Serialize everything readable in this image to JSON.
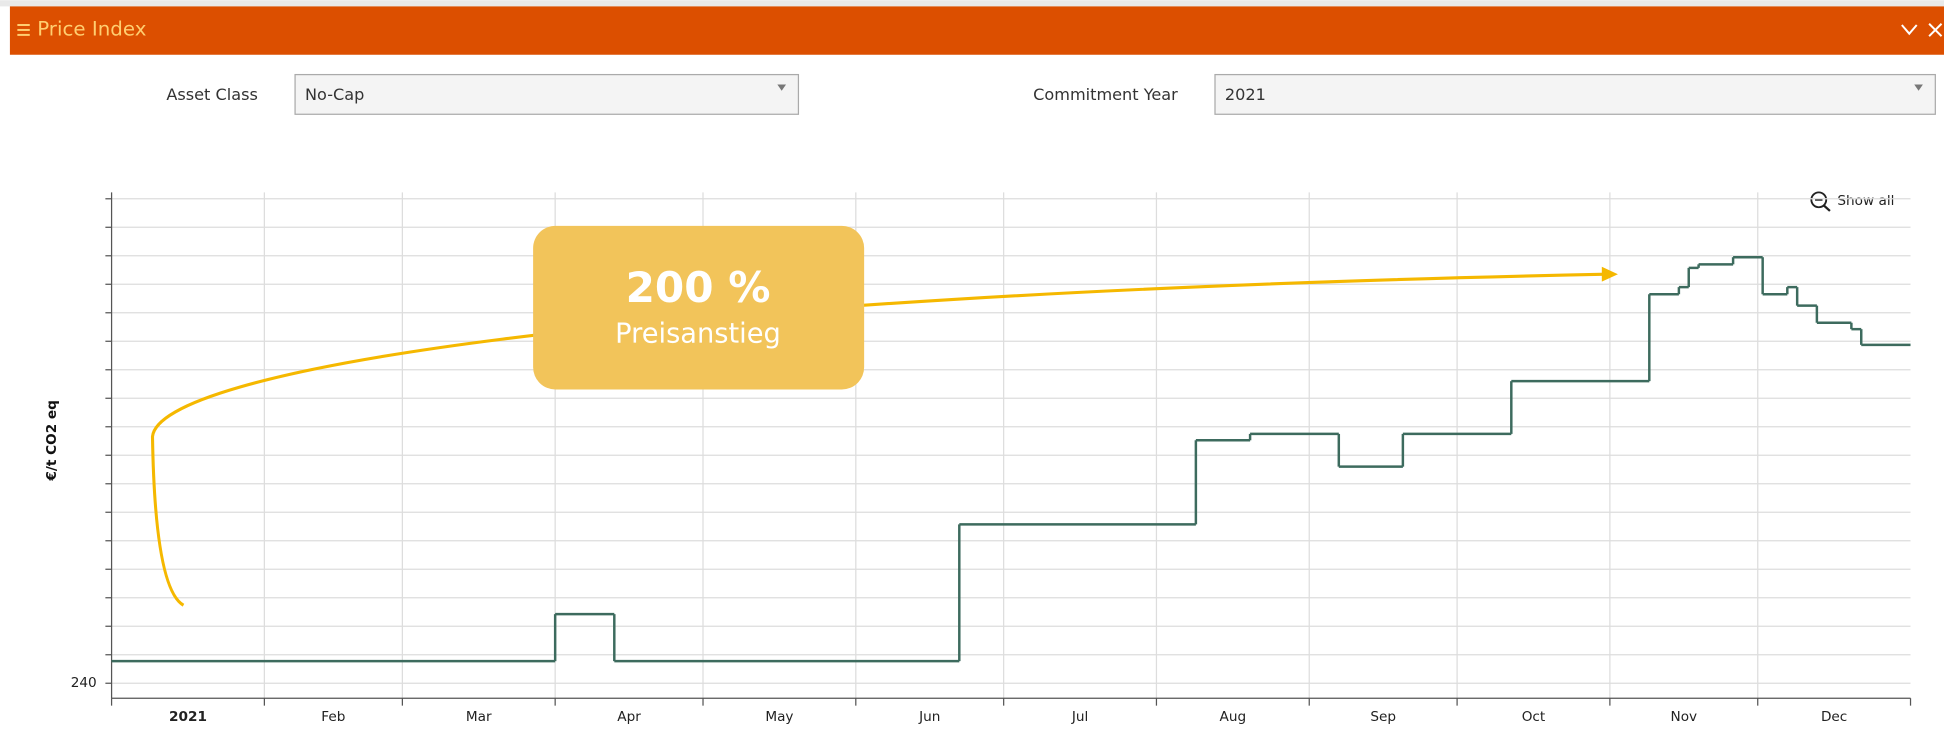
{
  "header": {
    "title": "Price Index"
  },
  "filters": [
    {
      "label": "Asset Class",
      "value": "No-Cap"
    },
    {
      "label": "Commitment Year",
      "value": "2021"
    }
  ],
  "toolbar": {
    "reset_zoom": "Show all"
  },
  "chart_data": {
    "type": "step",
    "y_label": "€/t CO2 eq",
    "annotations": [
      {
        "text": "200 %"
      },
      {
        "text": "Preisanstieg"
      }
    ],
    "x": [
      0,
      90,
      102,
      172,
      220,
      231,
      249,
      262,
      284,
      312,
      318,
      320,
      322,
      329,
      335,
      340,
      342,
      346,
      353,
      355,
      365
    ],
    "series": [
      {
        "name": "No-Cap",
        "color": "#3d6b5e",
        "values": [
          271,
          337,
          271,
          463,
          581,
          590,
          544,
          590,
          664,
          786,
          796,
          823,
          828,
          838,
          786,
          796,
          770,
          746,
          737,
          715,
          715
        ]
      }
    ],
    "xlim": [
      0,
      365
    ],
    "xticks": [
      {
        "value": 0,
        "label": "2021"
      },
      {
        "value": 31,
        "label": "Feb"
      },
      {
        "value": 59,
        "label": "Mar"
      },
      {
        "value": 90,
        "label": "Apr"
      },
      {
        "value": 120,
        "label": "May"
      },
      {
        "value": 151,
        "label": "Jun"
      },
      {
        "value": 181,
        "label": "Jul"
      },
      {
        "value": 212,
        "label": "Aug"
      },
      {
        "value": 243,
        "label": "Sep"
      },
      {
        "value": 273,
        "label": "Oct"
      },
      {
        "value": 304,
        "label": "Nov"
      },
      {
        "value": 334,
        "label": "Dec"
      }
    ],
    "ylim": [
      219,
      929
    ],
    "yticks": [
      240
    ],
    "ygrid": [
      240,
      280,
      320,
      360,
      400,
      440,
      480,
      520,
      560,
      600,
      640,
      680,
      720,
      760,
      800,
      840,
      880,
      920
    ],
    "grid": true
  }
}
